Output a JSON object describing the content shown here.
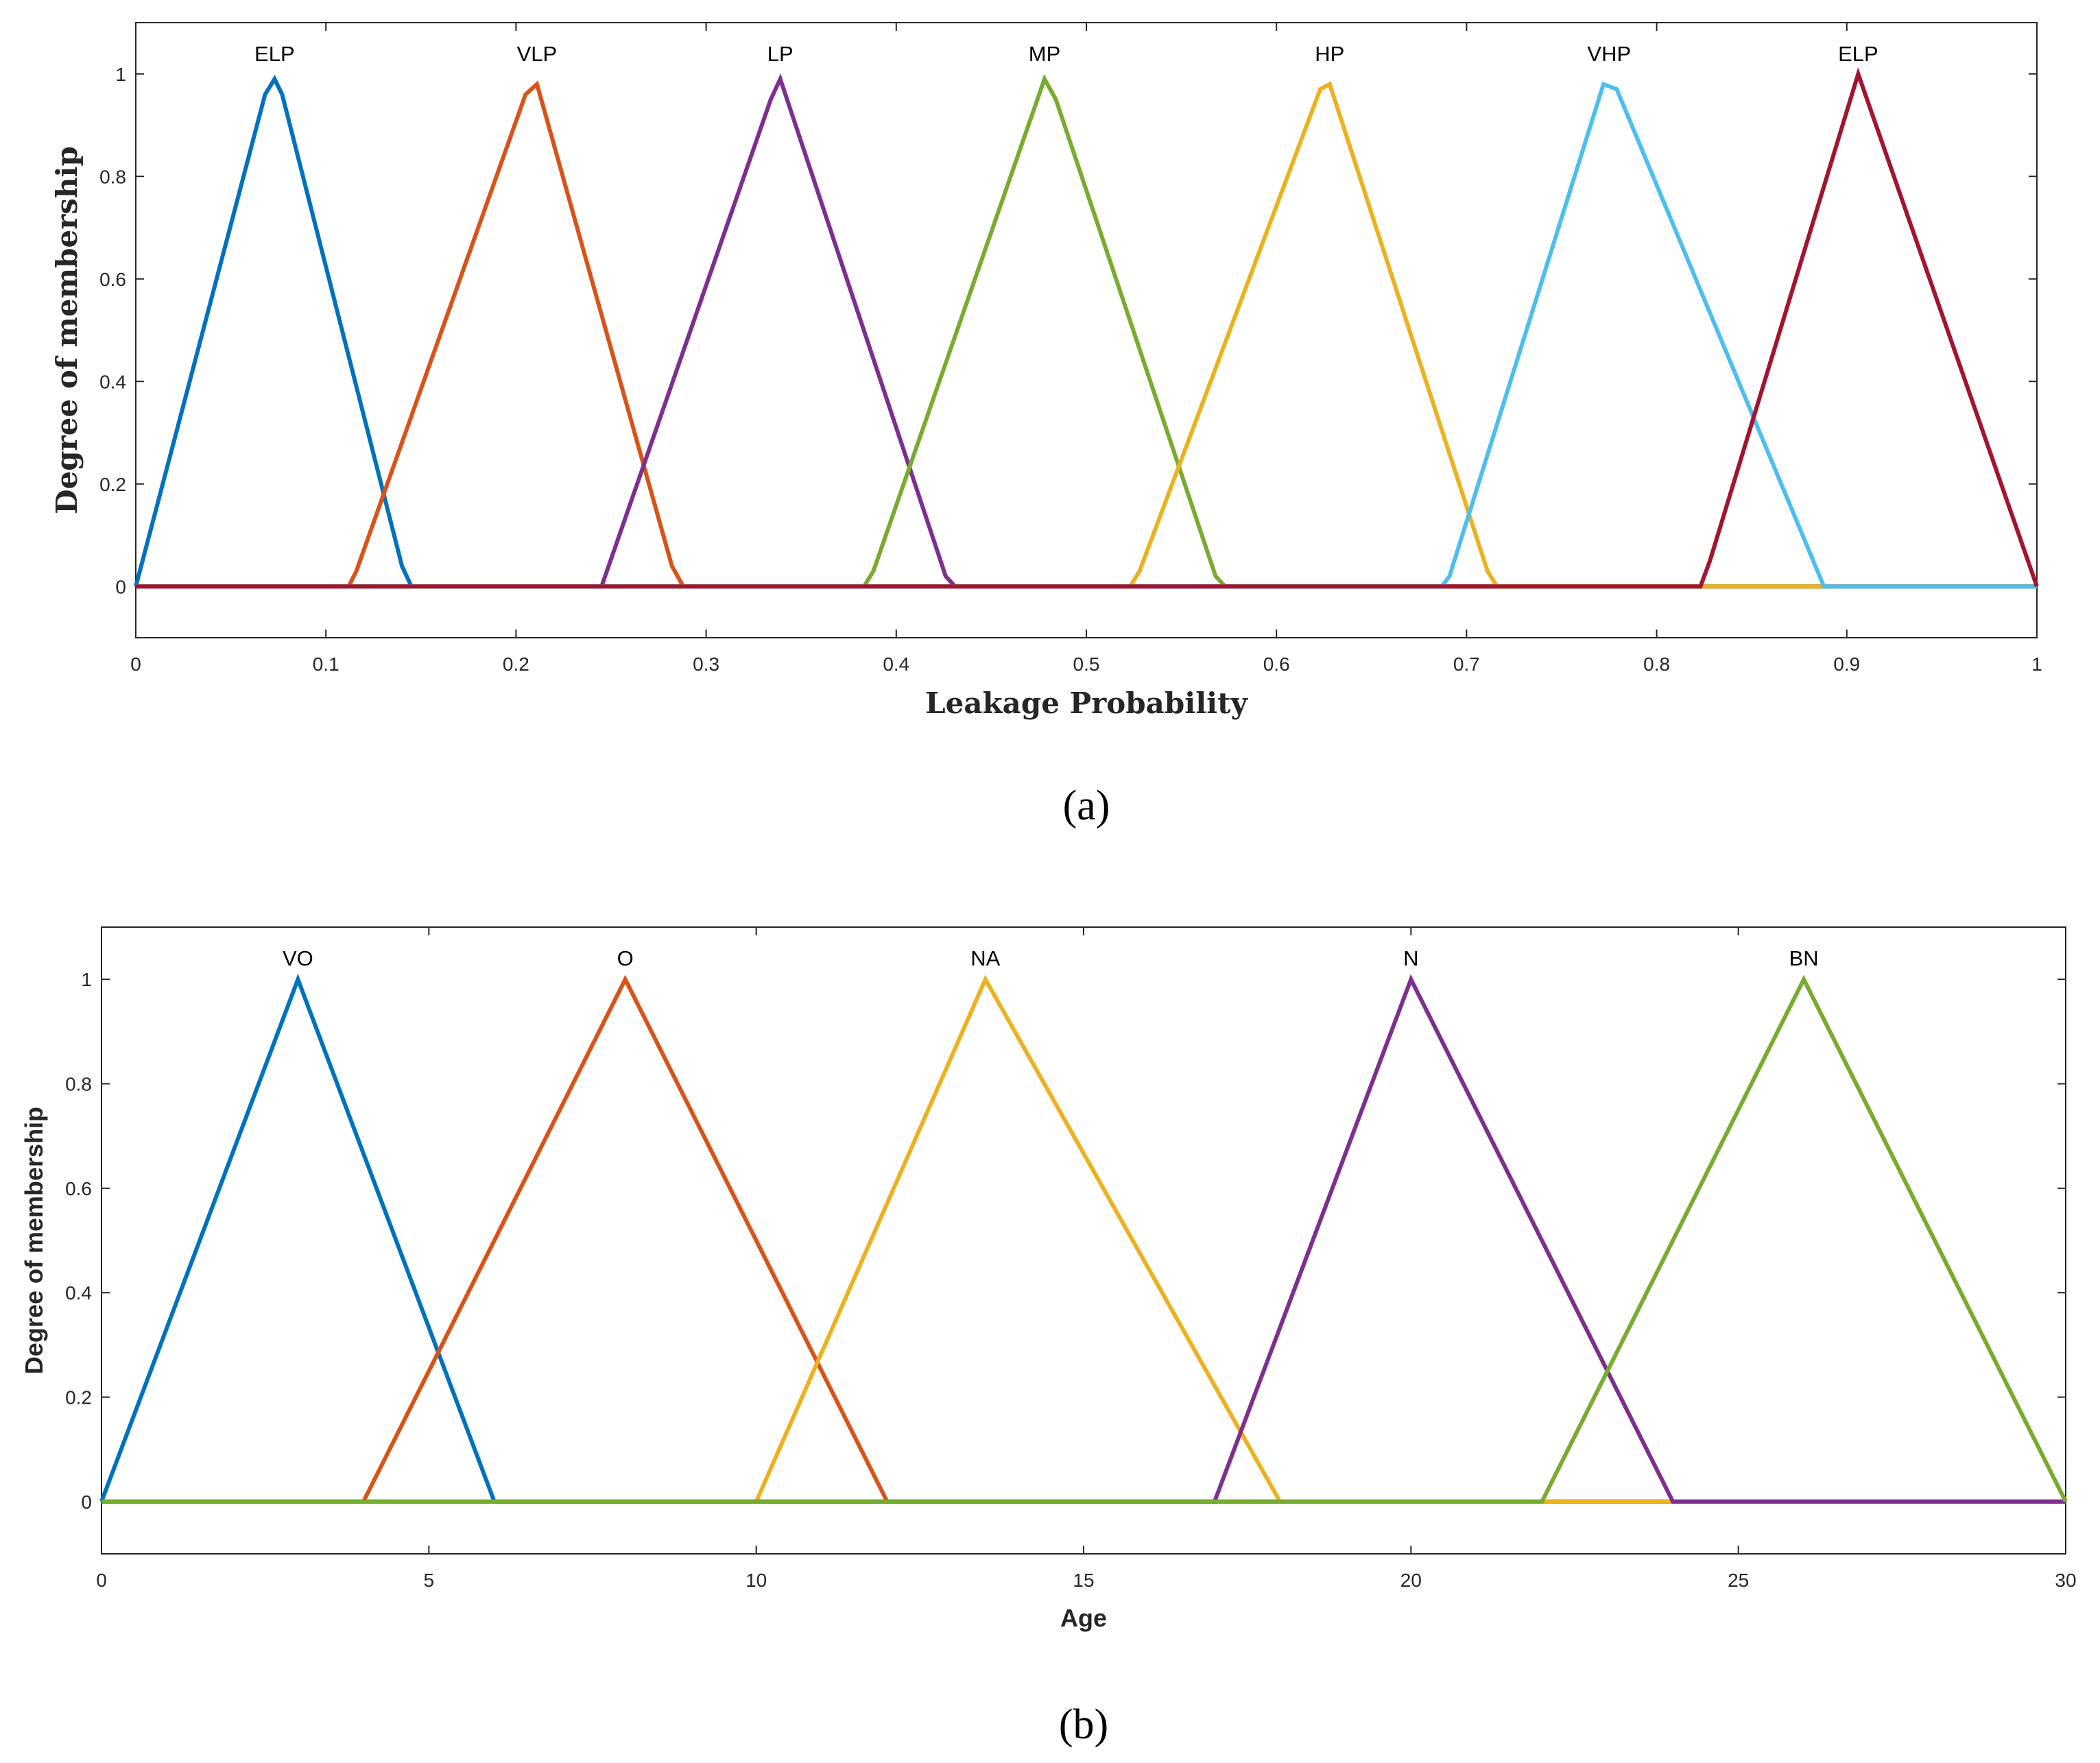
{
  "chart_data": [
    {
      "type": "line",
      "caption": "(a)",
      "xlabel": "Leakage Probability",
      "ylabel": "Degree of membership",
      "xlim": [
        0,
        1
      ],
      "ylim": [
        -0.1,
        1.1
      ],
      "xticks": [
        0,
        0.1,
        0.2,
        0.3,
        0.4,
        0.5,
        0.6,
        0.7,
        0.8,
        0.9,
        1
      ],
      "xtick_labels": [
        "0",
        "0.1",
        "0.2",
        "0.3",
        "0.4",
        "0.5",
        "0.6",
        "0.7",
        "0.8",
        "0.9",
        "1"
      ],
      "yticks": [
        0,
        0.2,
        0.4,
        0.6,
        0.8,
        1
      ],
      "ytick_labels": [
        "0",
        "0.2",
        "0.4",
        "0.6",
        "0.8",
        "1"
      ],
      "grid": false,
      "series": [
        {
          "name": "ELP",
          "color": "#0072BD",
          "peak": [
            0.073,
            0.99
          ],
          "x": [
            0,
            0.068,
            0.073,
            0.077,
            0.14,
            0.145,
            1
          ],
          "y": [
            0,
            0.96,
            0.99,
            0.96,
            0.04,
            0,
            0
          ]
        },
        {
          "name": "VLP",
          "color": "#D95319",
          "peak": [
            0.211,
            0.98
          ],
          "x": [
            0,
            0.112,
            0.116,
            0.205,
            0.211,
            0.282,
            0.288,
            1
          ],
          "y": [
            0,
            0,
            0.03,
            0.96,
            0.98,
            0.04,
            0,
            0
          ]
        },
        {
          "name": "LP",
          "color": "#7E2F8E",
          "peak": [
            0.339,
            0.99
          ],
          "x": [
            0,
            0.245,
            0.334,
            0.339,
            0.426,
            0.431,
            1
          ],
          "y": [
            0,
            0,
            0.95,
            0.99,
            0.02,
            0,
            0
          ]
        },
        {
          "name": "MP",
          "color": "#77AC30",
          "peak": [
            0.478,
            0.99
          ],
          "x": [
            0,
            0.383,
            0.388,
            0.478,
            0.484,
            0.568,
            0.573,
            1
          ],
          "y": [
            0,
            0,
            0.03,
            0.99,
            0.95,
            0.02,
            0,
            0
          ]
        },
        {
          "name": "HP",
          "color": "#EDB120",
          "peak": [
            0.628,
            0.98
          ],
          "x": [
            0,
            0.523,
            0.528,
            0.623,
            0.628,
            0.711,
            0.716,
            1
          ],
          "y": [
            0,
            0,
            0.03,
            0.97,
            0.98,
            0.03,
            0,
            0
          ]
        },
        {
          "name": "VHP",
          "color": "#4DBEEE",
          "peak": [
            0.775,
            0.98
          ],
          "x": [
            0,
            0.687,
            0.691,
            0.772,
            0.779,
            0.888,
            1
          ],
          "y": [
            0,
            0,
            0.02,
            0.98,
            0.97,
            0,
            0
          ]
        },
        {
          "name": "ELP",
          "color": "#A2142F",
          "peak": [
            0.906,
            1.0
          ],
          "x": [
            0,
            0.823,
            0.828,
            0.906,
            1
          ],
          "y": [
            0,
            0,
            0.05,
            1.0,
            0
          ]
        }
      ]
    },
    {
      "type": "line",
      "caption": "(b)",
      "xlabel": "Age",
      "ylabel": "Degree of membership",
      "xlim": [
        0,
        30
      ],
      "ylim": [
        -0.1,
        1.1
      ],
      "xticks": [
        0,
        5,
        10,
        15,
        20,
        25,
        30
      ],
      "xtick_labels": [
        "0",
        "5",
        "10",
        "15",
        "20",
        "25",
        "30"
      ],
      "yticks": [
        0,
        0.2,
        0.4,
        0.6,
        0.8,
        1
      ],
      "ytick_labels": [
        "0",
        "0.2",
        "0.4",
        "0.6",
        "0.8",
        "1"
      ],
      "grid": false,
      "series": [
        {
          "name": "VO",
          "color": "#0072BD",
          "peak": [
            3,
            1
          ],
          "x": [
            0,
            3,
            6,
            30
          ],
          "y": [
            0,
            1,
            0,
            0
          ]
        },
        {
          "name": "O",
          "color": "#D95319",
          "peak": [
            8,
            1
          ],
          "x": [
            0,
            4,
            8,
            12,
            30
          ],
          "y": [
            0,
            0,
            1,
            0,
            0
          ]
        },
        {
          "name": "NA",
          "color": "#EDB120",
          "peak": [
            13.5,
            1
          ],
          "x": [
            0,
            10,
            13.5,
            18,
            30
          ],
          "y": [
            0,
            0,
            1,
            0,
            0
          ]
        },
        {
          "name": "N",
          "color": "#7E2F8E",
          "peak": [
            20,
            1
          ],
          "x": [
            0,
            17,
            20,
            24,
            30
          ],
          "y": [
            0,
            0,
            1,
            0,
            0
          ]
        },
        {
          "name": "BN",
          "color": "#77AC30",
          "peak": [
            26,
            1
          ],
          "x": [
            0,
            22,
            26,
            30
          ],
          "y": [
            0,
            0,
            1,
            0
          ]
        }
      ]
    }
  ]
}
